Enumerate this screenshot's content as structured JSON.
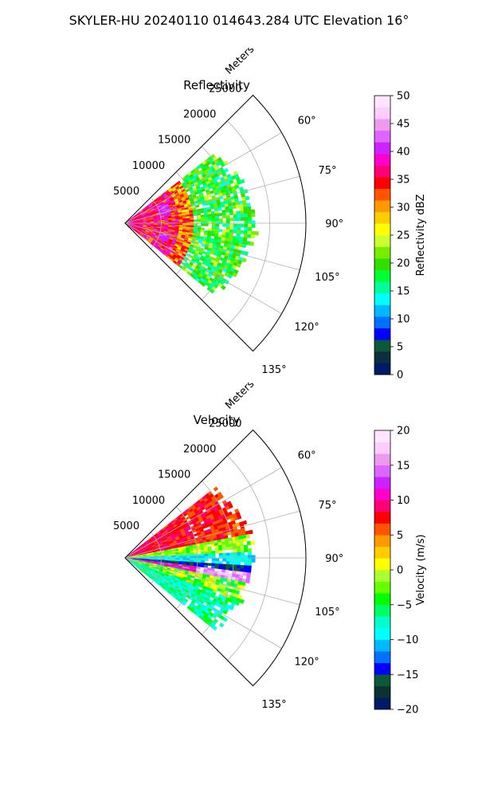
{
  "figure": {
    "title": "SKYLER-HU  20240110  014643.284 UTC Elevation 16°"
  },
  "chart_data": [
    {
      "type": "heatmap",
      "projection": "polar-sector",
      "title": "Reflectivity",
      "range_axis_label": "Meters",
      "range_ticks": [
        5000,
        10000,
        15000,
        20000,
        25000
      ],
      "range_tick_labels": [
        "5000",
        "10000",
        "15000",
        "20000",
        "25000"
      ],
      "range_lim": [
        0,
        25000
      ],
      "azimuth_lim": [
        45,
        135
      ],
      "azimuth_ticks": [
        60,
        75,
        90,
        105,
        120,
        135
      ],
      "azimuth_tick_labels": [
        "60°",
        "75°",
        "90°",
        "105°",
        "120°",
        "135°"
      ],
      "grid": true,
      "data_azimuth_lim": [
        52,
        128
      ],
      "max_data_range": 17000,
      "colorbar": {
        "label": "Reflectivity dBZ",
        "min": 0,
        "max": 50,
        "ticks": [
          0,
          5,
          10,
          15,
          20,
          25,
          30,
          35,
          40,
          45,
          50
        ],
        "tick_labels": [
          "0",
          "5",
          "10",
          "15",
          "20",
          "25",
          "30",
          "35",
          "40",
          "45",
          "50"
        ],
        "colors": [
          "#001a66",
          "#0d2e3e",
          "#0a5a3a",
          "#0000ff",
          "#0070ff",
          "#00b8ff",
          "#00ffff",
          "#00ff99",
          "#00ff33",
          "#33dd00",
          "#77ee00",
          "#ccff33",
          "#ffff00",
          "#ffcc00",
          "#ff9900",
          "#ff5500",
          "#ff0000",
          "#ff0077",
          "#ff00cc",
          "#cc22ff",
          "#dd66ff",
          "#ee99ee",
          "#ffccff",
          "#ffe5ff"
        ]
      }
    },
    {
      "type": "heatmap",
      "projection": "polar-sector",
      "title": "Velocity",
      "range_axis_label": "Meters",
      "range_ticks": [
        5000,
        10000,
        15000,
        20000,
        25000
      ],
      "range_tick_labels": [
        "5000",
        "10000",
        "15000",
        "20000",
        "25000"
      ],
      "range_lim": [
        0,
        25000
      ],
      "azimuth_lim": [
        45,
        135
      ],
      "azimuth_ticks": [
        60,
        75,
        90,
        105,
        120,
        135
      ],
      "azimuth_tick_labels": [
        "60°",
        "75°",
        "90°",
        "105°",
        "120°",
        "135°"
      ],
      "grid": true,
      "data_azimuth_lim": [
        52,
        128
      ],
      "max_data_range": 17000,
      "colorbar": {
        "label": "Velocity (m/s)",
        "min": -20,
        "max": 20,
        "ticks": [
          -20,
          -15,
          -10,
          -5,
          0,
          5,
          10,
          15,
          20
        ],
        "tick_labels": [
          "−20",
          "−15",
          "−10",
          "−5",
          "0",
          "5",
          "10",
          "15",
          "20"
        ],
        "colors": [
          "#001a66",
          "#0d3030",
          "#0a5a3a",
          "#0000ff",
          "#0070ff",
          "#00b8ff",
          "#00ffff",
          "#00ffcc",
          "#00ff66",
          "#00ff00",
          "#66ff00",
          "#aaff33",
          "#ffff00",
          "#ffcc00",
          "#ff9900",
          "#ff5500",
          "#ff0000",
          "#ff0077",
          "#ff00cc",
          "#cc22ff",
          "#dd66ff",
          "#ee99ee",
          "#ffccff",
          "#ffe5ff"
        ]
      }
    }
  ]
}
